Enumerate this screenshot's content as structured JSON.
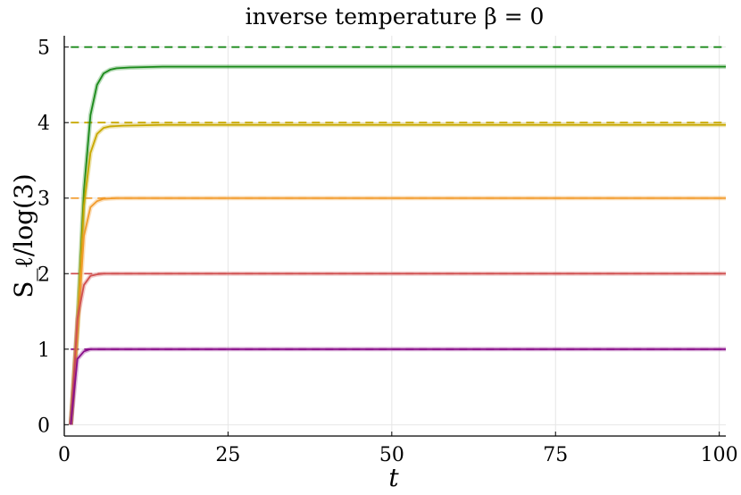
{
  "chart_data": {
    "type": "line",
    "title": "inverse temperature β = 0",
    "xlabel": "t",
    "ylabel": "S_ℓ/log(3)",
    "xlim": [
      0,
      101
    ],
    "ylim": [
      -0.15,
      5.15
    ],
    "xticks": [
      0,
      25,
      50,
      75,
      100
    ],
    "yticks": [
      0,
      1,
      2,
      3,
      4,
      5
    ],
    "grid": true,
    "legend": "none",
    "series": [
      {
        "color": "#1a8a1a",
        "limit": 5,
        "values": [
          [
            1,
            0
          ],
          [
            2,
            1.3
          ],
          [
            3,
            3.1
          ],
          [
            4,
            4.1
          ],
          [
            5,
            4.5
          ],
          [
            6,
            4.65
          ],
          [
            7,
            4.7
          ],
          [
            8,
            4.72
          ],
          [
            10,
            4.73
          ],
          [
            15,
            4.74
          ],
          [
            25,
            4.74
          ],
          [
            50,
            4.74
          ],
          [
            75,
            4.74
          ],
          [
            101,
            4.74
          ]
        ]
      },
      {
        "color": "#c8a800",
        "limit": 4,
        "values": [
          [
            1,
            0
          ],
          [
            2,
            1.3
          ],
          [
            3,
            2.9
          ],
          [
            4,
            3.6
          ],
          [
            5,
            3.85
          ],
          [
            6,
            3.93
          ],
          [
            7,
            3.95
          ],
          [
            9,
            3.96
          ],
          [
            15,
            3.97
          ],
          [
            25,
            3.97
          ],
          [
            50,
            3.97
          ],
          [
            75,
            3.97
          ],
          [
            101,
            3.97
          ]
        ]
      },
      {
        "color": "#f29b2c",
        "limit": 3,
        "values": [
          [
            1,
            0
          ],
          [
            2,
            1.2
          ],
          [
            3,
            2.5
          ],
          [
            4,
            2.88
          ],
          [
            5,
            2.96
          ],
          [
            6,
            2.99
          ],
          [
            8,
            3.0
          ],
          [
            15,
            3.0
          ],
          [
            50,
            3.0
          ],
          [
            101,
            3.0
          ]
        ]
      },
      {
        "color": "#d05050",
        "limit": 2,
        "values": [
          [
            1,
            0
          ],
          [
            2,
            1.4
          ],
          [
            3,
            1.85
          ],
          [
            4,
            1.97
          ],
          [
            5,
            1.99
          ],
          [
            6,
            2.0
          ],
          [
            15,
            2.0
          ],
          [
            50,
            2.0
          ],
          [
            101,
            2.0
          ]
        ]
      },
      {
        "color": "#8a0f8a",
        "limit": 1,
        "values": [
          [
            1,
            0
          ],
          [
            2,
            0.87
          ],
          [
            3,
            0.97
          ],
          [
            4,
            1.0
          ],
          [
            6,
            1.0
          ],
          [
            50,
            1.0
          ],
          [
            101,
            1.0
          ]
        ]
      }
    ]
  }
}
